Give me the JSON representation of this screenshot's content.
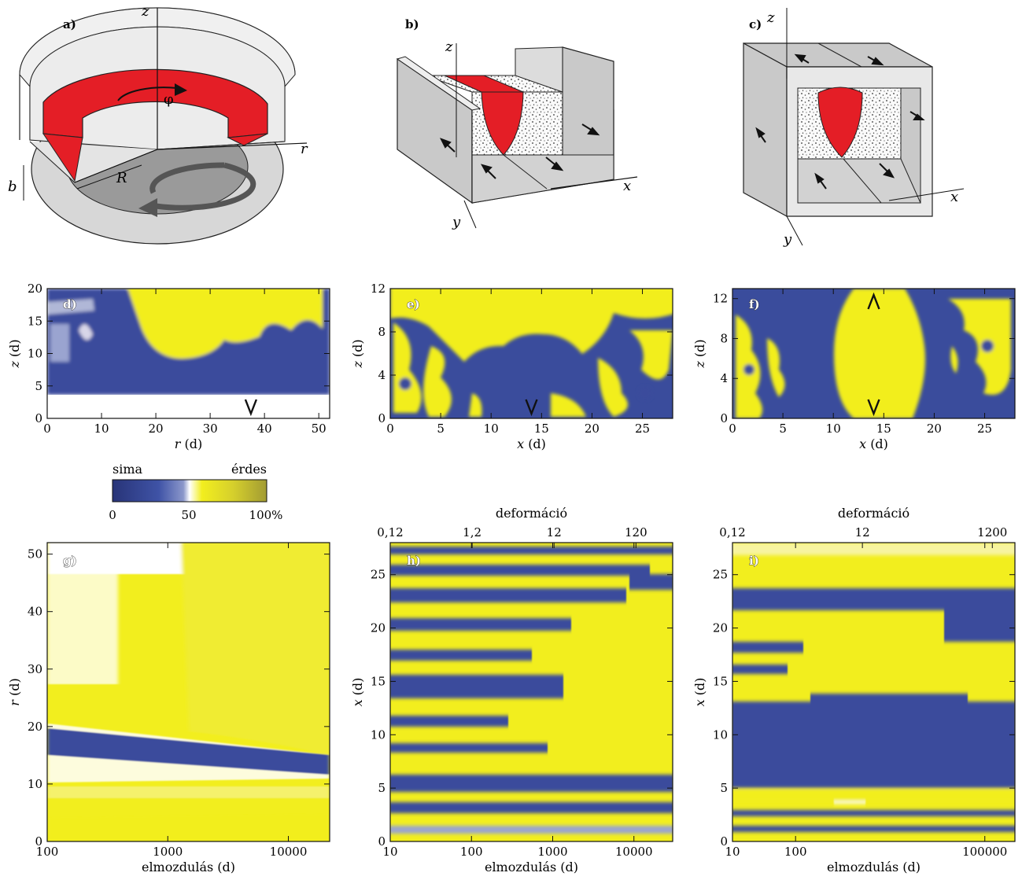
{
  "panel_labels": {
    "a": "a)",
    "b": "b)",
    "c": "c)",
    "d": "d)",
    "e": "e)",
    "f": "f)",
    "g": "g)",
    "h": "h)",
    "i": "i)"
  },
  "schematic_labels": {
    "a": {
      "z": "z",
      "r": "r",
      "phi": "φ",
      "R": "R",
      "b": "b"
    },
    "b": {
      "z": "z",
      "x": "x",
      "y": "y"
    },
    "c": {
      "z": "z",
      "x": "x",
      "y": "y"
    }
  },
  "colorbar": {
    "left_label": "sima",
    "right_label": "érdes",
    "ticks": [
      "0",
      "50",
      "100%"
    ]
  },
  "colors": {
    "blue": "#3a4c9c",
    "dark_blue": "#283478",
    "yellow": "#f2ee1e",
    "olive": "#a29b33",
    "red": "#e41e26",
    "gray": "#c9c9c9"
  },
  "chart_data": [
    {
      "panel": "d",
      "type": "heatmap",
      "xlabel": "r",
      "xunit": "(d)",
      "ylabel": "z",
      "yunit": "(d)",
      "xlim": [
        0,
        52
      ],
      "ylim": [
        0,
        20
      ],
      "x_ticks": [
        "0",
        "10",
        "20",
        "30",
        "40",
        "50"
      ],
      "y_ticks": [
        "0",
        "5",
        "10",
        "15",
        "20"
      ],
      "marker": {
        "symbol": "V",
        "x": 37.5
      }
    },
    {
      "panel": "e",
      "type": "heatmap",
      "xlabel": "x",
      "xunit": "(d)",
      "ylabel": "z",
      "yunit": "(d)",
      "xlim": [
        0,
        28
      ],
      "ylim": [
        0,
        12
      ],
      "x_ticks": [
        "0",
        "5",
        "10",
        "15",
        "20",
        "25"
      ],
      "y_ticks": [
        "0",
        "4",
        "8",
        "12"
      ],
      "marker": {
        "symbol": "V",
        "x": 14
      }
    },
    {
      "panel": "f",
      "type": "heatmap",
      "xlabel": "x",
      "xunit": "(d)",
      "ylabel": "z",
      "yunit": "(d)",
      "xlim": [
        0,
        28
      ],
      "ylim": [
        0,
        13
      ],
      "x_ticks": [
        "0",
        "5",
        "10",
        "15",
        "20",
        "25"
      ],
      "y_ticks": [
        "0",
        "4",
        "8",
        "12"
      ],
      "markers": [
        {
          "symbol": "V",
          "x": 14
        },
        {
          "symbol": "Λ",
          "x": 14
        }
      ]
    },
    {
      "panel": "g",
      "type": "heatmap",
      "xlabel": "elmozdulás",
      "xunit": "(d)",
      "ylabel": "r",
      "yunit": "(d)",
      "xscale": "log",
      "xlim": [
        100,
        22000
      ],
      "ylim": [
        0,
        52
      ],
      "x_ticks": [
        "100",
        "1000",
        "10000"
      ],
      "y_ticks": [
        "0",
        "10",
        "20",
        "30",
        "40",
        "50"
      ]
    },
    {
      "panel": "h",
      "type": "heatmap",
      "xlabel": "elmozdulás",
      "xunit": "(d)",
      "ylabel": "x",
      "yunit": "(d)",
      "top_xlabel": "deformáció",
      "top_ticks": [
        "0,12",
        "1,2",
        "12",
        "120"
      ],
      "xscale": "log",
      "xlim": [
        10,
        30000
      ],
      "ylim": [
        0,
        28
      ],
      "x_ticks": [
        "10",
        "100",
        "1000",
        "10000"
      ],
      "y_ticks": [
        "0",
        "5",
        "10",
        "15",
        "20",
        "25"
      ]
    },
    {
      "panel": "i",
      "type": "heatmap",
      "xlabel": "elmozdulás",
      "xunit": "(d)",
      "ylabel": "x",
      "yunit": "(d)",
      "top_xlabel": "deformáció",
      "top_ticks": [
        "0,12",
        "12",
        "1200"
      ],
      "xscale": "log",
      "xlim": [
        10,
        300000
      ],
      "ylim": [
        0,
        28
      ],
      "x_ticks": [
        "10",
        "100",
        "100000"
      ],
      "y_ticks": [
        "0",
        "5",
        "10",
        "15",
        "20",
        "25"
      ]
    }
  ]
}
